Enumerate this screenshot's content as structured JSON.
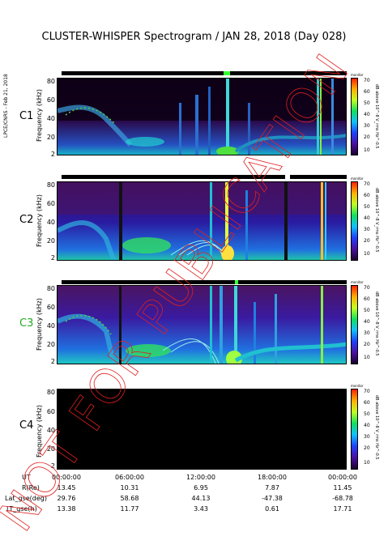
{
  "title": "CLUSTER-WHISPER Spectrogram / JAN 28, 2018 (Day 028)",
  "side_note": "LPCE/CNRS - Feb 21, 2018",
  "watermark": "NOT FOR PUBLICATION",
  "chart_data": {
    "type": "heatmap",
    "xlabel": "UT",
    "ylabel": "Frequency (kHz)",
    "x_tick_labels": [
      "00:00:00",
      "06:00:00",
      "12:00:00",
      "18:00:00",
      "00:00:00"
    ],
    "y_tick_labels": [
      "2",
      "20",
      "40",
      "60",
      "80"
    ],
    "ylim": [
      2,
      82
    ],
    "colorbar": {
      "label": "dB above 10^-8 V_rms Hz^-0.5",
      "title": "monitor",
      "ticks": [
        "10",
        "20",
        "30",
        "40",
        "50",
        "60",
        "70"
      ],
      "range": [
        5,
        72
      ]
    },
    "panels": [
      {
        "label": "C1",
        "label_color": "#000000",
        "has_data": true
      },
      {
        "label": "C2",
        "label_color": "#000000",
        "has_data": true
      },
      {
        "label": "C3",
        "label_color": "#22aa22",
        "has_data": true
      },
      {
        "label": "C4",
        "label_color": "#000000",
        "has_data": false
      }
    ]
  },
  "orbit_table": {
    "rows": [
      {
        "label": "UT",
        "values": [
          "00:00:00",
          "06:00:00",
          "12:00:00",
          "18:00:00",
          "00:00:00"
        ]
      },
      {
        "label": "R(Re)",
        "values": [
          "13.45",
          "10.31",
          "6.95",
          "7.87",
          "11.45"
        ]
      },
      {
        "label": "Lat_gse(deg)",
        "values": [
          "29.76",
          "58.68",
          "44.13",
          "-47.38",
          "-68.78"
        ]
      },
      {
        "label": "LT_gse(h)",
        "values": [
          "13.38",
          "11.77",
          "3.43",
          "0.61",
          "17.71"
        ]
      }
    ]
  }
}
